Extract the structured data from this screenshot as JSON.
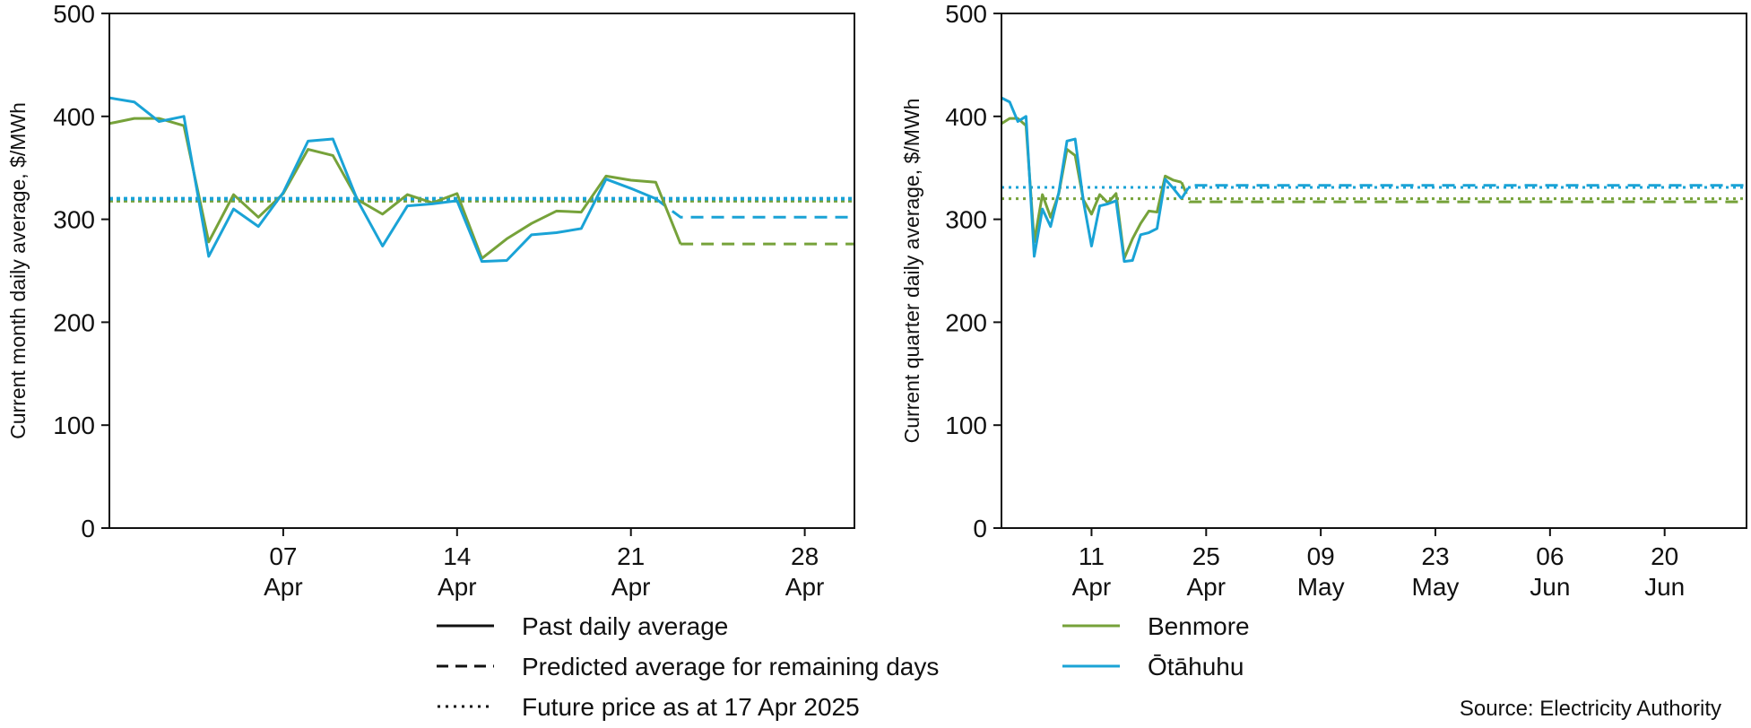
{
  "colors": {
    "benmore": "#76a23a",
    "otahuhu": "#1aa3d6",
    "axis": "#111111"
  },
  "chart_data": [
    {
      "type": "line",
      "title": "",
      "xlabel": "",
      "ylabel": "Current month daily average, $/MWh",
      "ylim": [
        0,
        500
      ],
      "yticks": [
        0,
        100,
        200,
        300,
        400,
        500
      ],
      "xlim": [
        "2025-03-31",
        "2025-04-30"
      ],
      "xticks": [
        {
          "date": "2025-04-07",
          "day": "07",
          "month": "Apr"
        },
        {
          "date": "2025-04-14",
          "day": "14",
          "month": "Apr"
        },
        {
          "date": "2025-04-21",
          "day": "21",
          "month": "Apr"
        },
        {
          "date": "2025-04-28",
          "day": "28",
          "month": "Apr"
        }
      ],
      "grid": false,
      "series": [
        {
          "name": "Benmore",
          "color_key": "benmore",
          "past": {
            "x": [
              "2025-03-31",
              "2025-04-01",
              "2025-04-02",
              "2025-04-03",
              "2025-04-04",
              "2025-04-05",
              "2025-04-06",
              "2025-04-07",
              "2025-04-08",
              "2025-04-09",
              "2025-04-10",
              "2025-04-11",
              "2025-04-12",
              "2025-04-13",
              "2025-04-14",
              "2025-04-15",
              "2025-04-16",
              "2025-04-17",
              "2025-04-18",
              "2025-04-19",
              "2025-04-20",
              "2025-04-21",
              "2025-04-22",
              "2025-04-23"
            ],
            "y": [
              393,
              398,
              398,
              391,
              278,
              324,
              302,
              325,
              368,
              362,
              319,
              305,
              324,
              316,
              325,
              262,
              281,
              296,
              308,
              307,
              342,
              338,
              336,
              276
            ]
          },
          "predicted": {
            "x": [
              "2025-04-23",
              "2025-04-30"
            ],
            "y": [
              276,
              276
            ]
          },
          "future": 318
        },
        {
          "name": "Ōtāhuhu",
          "color_key": "otahuhu",
          "past": {
            "x": [
              "2025-03-31",
              "2025-04-01",
              "2025-04-02",
              "2025-04-03",
              "2025-04-04",
              "2025-04-05",
              "2025-04-06",
              "2025-04-07",
              "2025-04-08",
              "2025-04-09",
              "2025-04-10",
              "2025-04-11",
              "2025-04-12",
              "2025-04-13",
              "2025-04-14",
              "2025-04-15",
              "2025-04-16",
              "2025-04-17",
              "2025-04-18",
              "2025-04-19",
              "2025-04-20",
              "2025-04-21",
              "2025-04-22"
            ],
            "y": [
              418,
              414,
              395,
              400,
              264,
              310,
              293,
              326,
              376,
              378,
              318,
              274,
              313,
              315,
              318,
              259,
              260,
              285,
              287,
              291,
              339,
              330,
              320
            ]
          },
          "predicted": {
            "x": [
              "2025-04-22",
              "2025-04-23",
              "2025-04-30"
            ],
            "y": [
              320,
              302,
              302
            ]
          },
          "future": 320
        }
      ]
    },
    {
      "type": "line",
      "title": "",
      "xlabel": "",
      "ylabel": "Current quarter daily average, $/MWh",
      "ylim": [
        0,
        500
      ],
      "yticks": [
        0,
        100,
        200,
        300,
        400,
        500
      ],
      "xlim": [
        "2025-03-31",
        "2025-06-30"
      ],
      "xticks": [
        {
          "date": "2025-04-11",
          "day": "11",
          "month": "Apr"
        },
        {
          "date": "2025-04-25",
          "day": "25",
          "month": "Apr"
        },
        {
          "date": "2025-05-09",
          "day": "09",
          "month": "May"
        },
        {
          "date": "2025-05-23",
          "day": "23",
          "month": "May"
        },
        {
          "date": "2025-06-06",
          "day": "06",
          "month": "Jun"
        },
        {
          "date": "2025-06-20",
          "day": "20",
          "month": "Jun"
        }
      ],
      "grid": false,
      "series": [
        {
          "name": "Benmore",
          "color_key": "benmore",
          "past": {
            "x": [
              "2025-03-31",
              "2025-04-01",
              "2025-04-02",
              "2025-04-03",
              "2025-04-04",
              "2025-04-05",
              "2025-04-06",
              "2025-04-07",
              "2025-04-08",
              "2025-04-09",
              "2025-04-10",
              "2025-04-11",
              "2025-04-12",
              "2025-04-13",
              "2025-04-14",
              "2025-04-15",
              "2025-04-16",
              "2025-04-17",
              "2025-04-18",
              "2025-04-19",
              "2025-04-20",
              "2025-04-21",
              "2025-04-22"
            ],
            "y": [
              393,
              398,
              398,
              391,
              278,
              324,
              302,
              325,
              368,
              362,
              319,
              305,
              324,
              316,
              325,
              262,
              281,
              296,
              308,
              307,
              342,
              338,
              336
            ]
          },
          "predicted": {
            "x": [
              "2025-04-22",
              "2025-04-23",
              "2025-06-30"
            ],
            "y": [
              336,
              317,
              317
            ]
          },
          "future": 320
        },
        {
          "name": "Ōtāhuhu",
          "color_key": "otahuhu",
          "past": {
            "x": [
              "2025-03-31",
              "2025-04-01",
              "2025-04-02",
              "2025-04-03",
              "2025-04-04",
              "2025-04-05",
              "2025-04-06",
              "2025-04-07",
              "2025-04-08",
              "2025-04-09",
              "2025-04-10",
              "2025-04-11",
              "2025-04-12",
              "2025-04-13",
              "2025-04-14",
              "2025-04-15",
              "2025-04-16",
              "2025-04-17",
              "2025-04-18",
              "2025-04-19",
              "2025-04-20",
              "2025-04-21",
              "2025-04-22"
            ],
            "y": [
              418,
              414,
              395,
              400,
              264,
              310,
              293,
              326,
              376,
              378,
              318,
              274,
              313,
              315,
              318,
              259,
              260,
              285,
              287,
              291,
              339,
              330,
              320
            ]
          },
          "predicted": {
            "x": [
              "2025-04-22",
              "2025-04-23",
              "2025-06-30"
            ],
            "y": [
              320,
              333,
              333
            ]
          },
          "future": 331
        }
      ]
    }
  ],
  "legend": {
    "styles": [
      {
        "style": "solid",
        "label": "Past daily average"
      },
      {
        "style": "dashed",
        "label": "Predicted average for remaining days"
      },
      {
        "style": "dotted",
        "label": "Future price as at 17 Apr 2025"
      }
    ],
    "series": [
      {
        "color_key": "benmore",
        "label": "Benmore"
      },
      {
        "color_key": "otahuhu",
        "label": "Ōtāhuhu"
      }
    ]
  },
  "source": "Source: Electricity Authority"
}
